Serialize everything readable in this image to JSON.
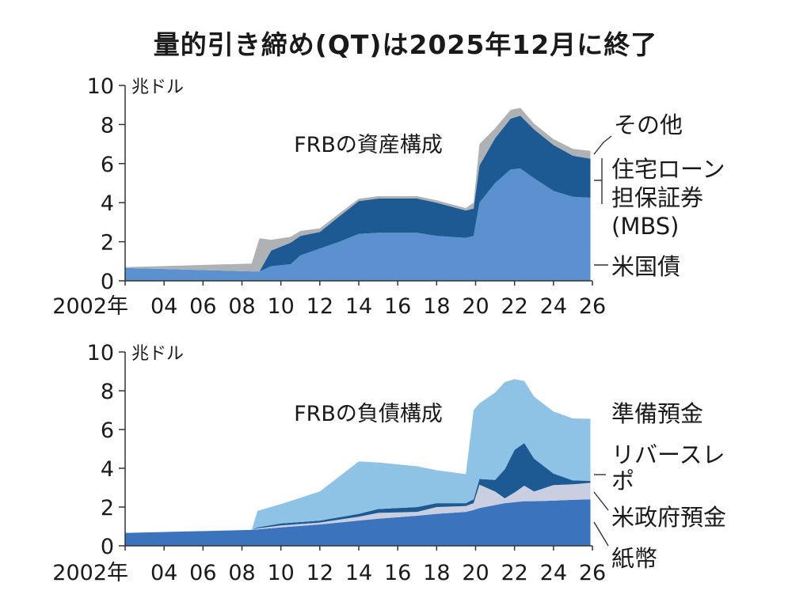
{
  "title": "量的引き締め(QT)は2025年12月に終了",
  "chart_data": [
    {
      "type": "area",
      "stacked": true,
      "title": "FRBの資産構成",
      "ylabel": "兆ドル",
      "ylim": [
        0,
        10
      ],
      "yticks": [
        "0",
        "2",
        "4",
        "6",
        "8",
        "10"
      ],
      "x_tick_labels": [
        "2002年",
        "04",
        "06",
        "08",
        "10",
        "12",
        "14",
        "16",
        "18",
        "20",
        "22",
        "24",
        "26"
      ],
      "x_tick_years": [
        2002,
        2004,
        2006,
        2008,
        2010,
        2012,
        2014,
        2016,
        2018,
        2020,
        2022,
        2024,
        2026
      ],
      "xlim": [
        2002,
        2026
      ],
      "x": [
        2002,
        2008.5,
        2008.9,
        2009.5,
        2010.5,
        2011,
        2012,
        2013,
        2014,
        2015,
        2017,
        2018,
        2019.5,
        2019.9,
        2020.2,
        2021,
        2021.8,
        2022.3,
        2023,
        2024,
        2025,
        2025.9
      ],
      "series": [
        {
          "name": "米国債",
          "color": "#5b91cf",
          "values": [
            0.66,
            0.48,
            0.48,
            0.75,
            0.85,
            1.3,
            1.65,
            2.0,
            2.4,
            2.46,
            2.46,
            2.3,
            2.2,
            2.3,
            4.0,
            5.0,
            5.7,
            5.75,
            5.25,
            4.6,
            4.3,
            4.25
          ]
        },
        {
          "name": "住宅ローン担保証券",
          "name_line2": "(MBS)",
          "color": "#1d5a94",
          "values": [
            0.0,
            0.0,
            0.0,
            0.8,
            1.1,
            1.0,
            0.85,
            1.3,
            1.68,
            1.75,
            1.75,
            1.7,
            1.4,
            1.4,
            1.9,
            2.3,
            2.6,
            2.7,
            2.5,
            2.35,
            2.1,
            2.0
          ]
        },
        {
          "name": "その他",
          "color": "#aeb2b5",
          "values": [
            0.04,
            0.4,
            1.7,
            0.55,
            0.3,
            0.25,
            0.18,
            0.15,
            0.12,
            0.12,
            0.12,
            0.12,
            0.12,
            0.3,
            1.1,
            0.5,
            0.45,
            0.4,
            0.3,
            0.3,
            0.35,
            0.4
          ]
        }
      ],
      "grid": false,
      "legend": "right"
    },
    {
      "type": "area",
      "stacked": true,
      "title": "FRBの負債構成",
      "ylabel": "兆ドル",
      "ylim": [
        0,
        10
      ],
      "yticks": [
        "0",
        "2",
        "4",
        "6",
        "8",
        "10"
      ],
      "x_tick_labels": [
        "2002年",
        "04",
        "06",
        "08",
        "10",
        "12",
        "14",
        "16",
        "18",
        "20",
        "22",
        "24",
        "26"
      ],
      "x_tick_years": [
        2002,
        2004,
        2006,
        2008,
        2010,
        2012,
        2014,
        2016,
        2018,
        2020,
        2022,
        2024,
        2026
      ],
      "xlim": [
        2002,
        2026
      ],
      "x": [
        2002,
        2008.5,
        2008.8,
        2010,
        2012,
        2014,
        2015,
        2017,
        2018,
        2019.5,
        2019.9,
        2020.2,
        2021,
        2021.5,
        2022,
        2022.5,
        2023,
        2024,
        2025,
        2025.9
      ],
      "series": [
        {
          "name": "紙幣",
          "color": "#3b73bd",
          "values": [
            0.66,
            0.82,
            0.85,
            0.95,
            1.1,
            1.3,
            1.4,
            1.55,
            1.65,
            1.75,
            1.85,
            1.95,
            2.1,
            2.2,
            2.25,
            2.3,
            2.3,
            2.33,
            2.37,
            2.4
          ]
        },
        {
          "name": "米政府預金",
          "color": "#c9cfe0",
          "values": [
            0.0,
            0.0,
            0.05,
            0.1,
            0.1,
            0.2,
            0.3,
            0.2,
            0.35,
            0.3,
            0.35,
            1.2,
            0.7,
            0.25,
            0.5,
            0.8,
            0.5,
            0.8,
            0.8,
            0.85
          ]
        },
        {
          "name": "リバースレポ",
          "color": "#1d5a94",
          "values": [
            0.0,
            0.0,
            0.05,
            0.1,
            0.1,
            0.15,
            0.2,
            0.25,
            0.2,
            0.15,
            0.2,
            0.3,
            0.6,
            1.5,
            2.2,
            2.2,
            1.7,
            0.6,
            0.2,
            0.1
          ]
        },
        {
          "name": "準備預金",
          "color": "#8fc3e6",
          "values": [
            0.0,
            0.0,
            0.85,
            1.0,
            1.5,
            2.7,
            2.4,
            2.1,
            1.7,
            1.5,
            4.6,
            3.9,
            4.5,
            4.5,
            3.65,
            3.2,
            3.2,
            3.2,
            3.2,
            3.2
          ]
        }
      ],
      "grid": false,
      "legend": "right"
    }
  ]
}
